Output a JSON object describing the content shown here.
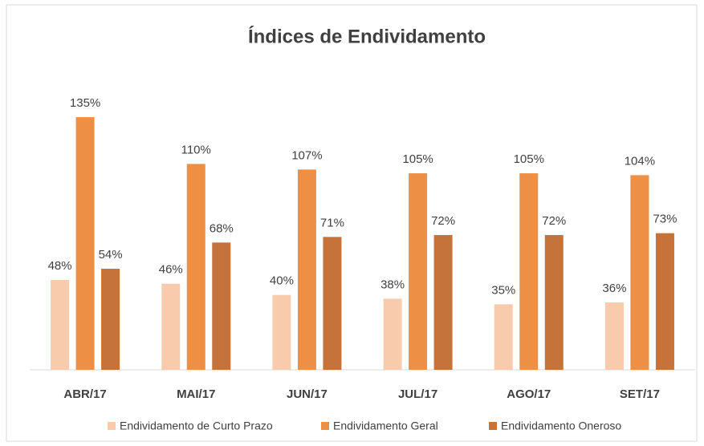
{
  "chart_data": {
    "type": "bar",
    "title": "Índices de Endividamento",
    "categories": [
      "ABR/17",
      "MAI/17",
      "JUN/17",
      "JUL/17",
      "AGO/17",
      "SET/17"
    ],
    "series": [
      {
        "name": "Endividamento de Curto Prazo",
        "color": "#f8cbad",
        "values": [
          48,
          46,
          40,
          38,
          35,
          36
        ],
        "value_labels": [
          "48%",
          "46%",
          "40%",
          "38%",
          "35%",
          "36%"
        ]
      },
      {
        "name": "Endividamento Geral",
        "color": "#ed8f45",
        "values": [
          135,
          110,
          107,
          105,
          105,
          104
        ],
        "value_labels": [
          "135%",
          "110%",
          "107%",
          "105%",
          "105%",
          "104%"
        ]
      },
      {
        "name": "Endividamento Oneroso",
        "color": "#c5733a",
        "values": [
          54,
          68,
          71,
          72,
          72,
          73
        ],
        "value_labels": [
          "54%",
          "68%",
          "71%",
          "72%",
          "72%",
          "73%"
        ]
      }
    ],
    "legend": "bottom"
  }
}
